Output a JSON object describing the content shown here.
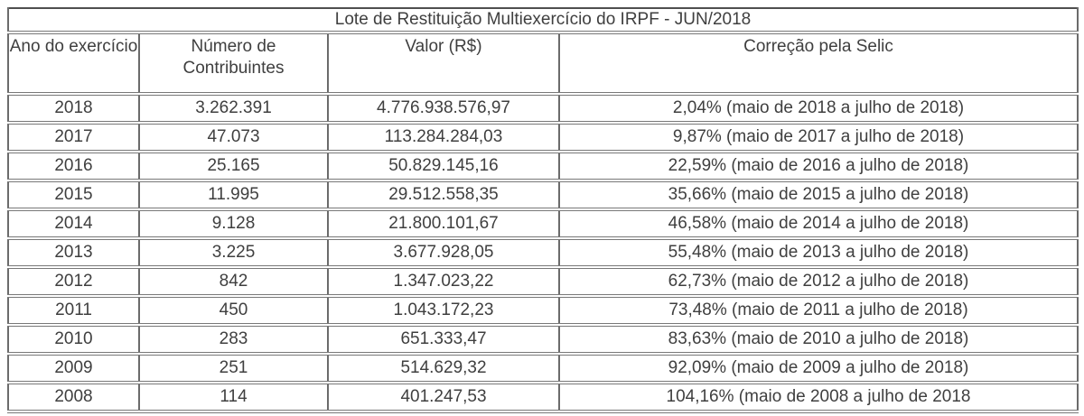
{
  "chart_data": {
    "type": "table",
    "title": "Lote de Restituição Multiexercício do IRPF - JUN/2018",
    "columns": [
      "Ano do exercício",
      "Número de Contribuintes",
      "Valor (R$)",
      "Correção pela Selic"
    ],
    "rows": [
      [
        "2018",
        "3.262.391",
        "4.776.938.576,97",
        "2,04% (maio de 2018 a julho de 2018)"
      ],
      [
        "2017",
        "47.073",
        "113.284.284,03",
        "9,87% (maio de 2017 a julho de 2018)"
      ],
      [
        "2016",
        "25.165",
        "50.829.145,16",
        "22,59% (maio de 2016 a julho de 2018)"
      ],
      [
        "2015",
        "11.995",
        "29.512.558,35",
        "35,66% (maio de 2015 a julho de 2018)"
      ],
      [
        "2014",
        "9.128",
        "21.800.101,67",
        "46,58% (maio de 2014 a julho de 2018)"
      ],
      [
        "2013",
        "3.225",
        "3.677.928,05",
        "55,48% (maio de 2013 a julho de 2018)"
      ],
      [
        "2012",
        "842",
        "1.347.023,22",
        "62,73% (maio de 2012 a julho de 2018)"
      ],
      [
        "2011",
        "450",
        "1.043.172,23",
        "73,48% (maio de 2011 a julho de 2018)"
      ],
      [
        "2010",
        "283",
        "651.333,47",
        "83,63% (maio de 2010 a julho de 2018)"
      ],
      [
        "2009",
        "251",
        "514.629,32",
        "92,09% (maio de 2009 a julho de 2018)"
      ],
      [
        "2008",
        "114",
        "401.247,53",
        "104,16% (maio de 2008 a julho de 2018"
      ]
    ]
  },
  "colors": {
    "background": "#ffffff",
    "text": "#3f3f3f",
    "grid_border": "#6b6b6b",
    "outer_border": "#4f4f4f"
  }
}
